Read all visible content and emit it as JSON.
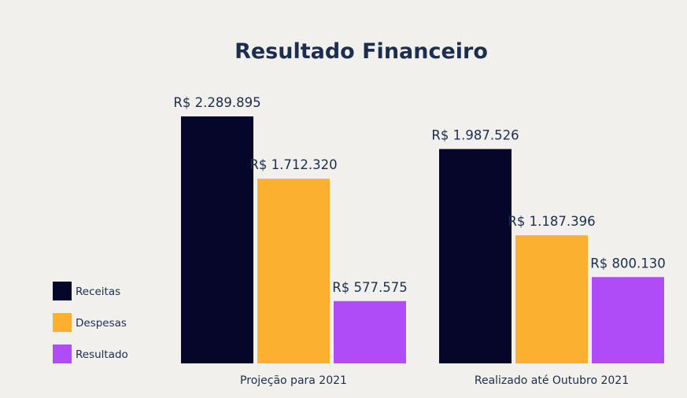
{
  "chart_data": {
    "type": "bar",
    "title": "Resultado Financeiro",
    "categories": [
      "Projeção para 2021",
      "Realizado até Outubro 2021"
    ],
    "series": [
      {
        "name": "Receitas",
        "color": "#06062a",
        "values": [
          2289895,
          1987526
        ],
        "labels": [
          "R$ 2.289.895",
          "R$ 1.987.526"
        ]
      },
      {
        "name": "Despesas",
        "color": "#fbb12f",
        "values": [
          1712320,
          1187396
        ],
        "labels": [
          "R$ 1.712.320",
          "R$ 1.187.396"
        ]
      },
      {
        "name": "Resultado",
        "color": "#b04bf8",
        "values": [
          577575,
          800130
        ],
        "labels": [
          "R$ 577.575",
          "R$ 800.130"
        ]
      }
    ],
    "legend_position": "left",
    "grid": false
  }
}
